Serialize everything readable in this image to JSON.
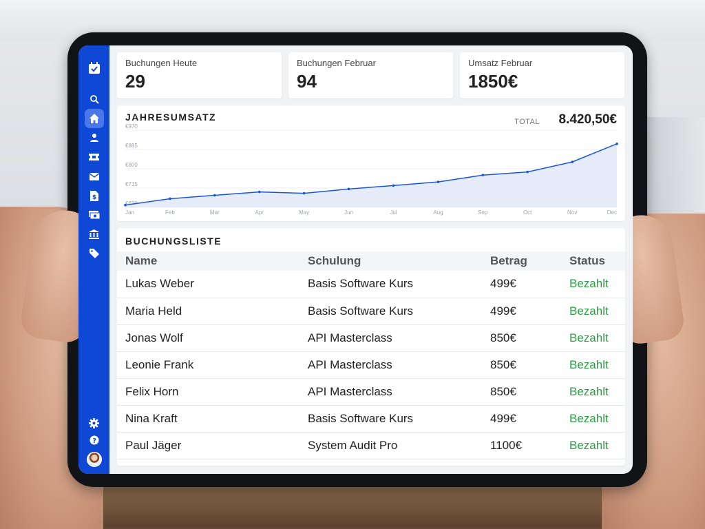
{
  "kpis": [
    {
      "label": "Buchungen Heute",
      "value": "29"
    },
    {
      "label": "Buchungen Februar",
      "value": "94"
    },
    {
      "label": "Umsatz Februar",
      "value": "1850€"
    }
  ],
  "revenue": {
    "title": "JAHRESUMSATZ",
    "total_label": "TOTAL",
    "total_value": "8.420,50€"
  },
  "chart_data": {
    "type": "area",
    "categories": [
      "Jan",
      "Feb",
      "Mar",
      "Apr",
      "May",
      "Jun",
      "Jul",
      "Aug",
      "Sep",
      "Oct",
      "Nov",
      "Dec"
    ],
    "values": [
      640,
      668,
      683,
      698,
      692,
      711,
      726,
      742,
      772,
      786,
      830,
      910
    ],
    "yticks": [
      630,
      715,
      800,
      885,
      970
    ],
    "ytick_labels": [
      "€630",
      "€715",
      "€800",
      "€885",
      "€970"
    ],
    "ylim": [
      630,
      970
    ],
    "grid": true,
    "color": "#1a56d6",
    "fill": "#e5ebf8"
  },
  "bookings": {
    "title": "BUCHUNGSLISTE",
    "columns": [
      "Name",
      "Schulung",
      "Betrag",
      "Status"
    ],
    "rows": [
      {
        "name": "Lukas Weber",
        "course": "Basis Software Kurs",
        "amount": "499€",
        "status": "Bezahlt"
      },
      {
        "name": "Maria Held",
        "course": "Basis Software Kurs",
        "amount": "499€",
        "status": "Bezahlt"
      },
      {
        "name": "Jonas Wolf",
        "course": "API Masterclass",
        "amount": "850€",
        "status": "Bezahlt"
      },
      {
        "name": "Leonie Frank",
        "course": "API Masterclass",
        "amount": "850€",
        "status": "Bezahlt"
      },
      {
        "name": "Felix Horn",
        "course": "API Masterclass",
        "amount": "850€",
        "status": "Bezahlt"
      },
      {
        "name": "Nina Kraft",
        "course": "Basis Software Kurs",
        "amount": "499€",
        "status": "Bezahlt"
      },
      {
        "name": "Paul Jäger",
        "course": "System Audit Pro",
        "amount": "1100€",
        "status": "Bezahlt"
      }
    ]
  },
  "sidebar": {
    "logo_icon": "calendar-check-icon",
    "items": [
      {
        "icon": "search-icon"
      },
      {
        "icon": "home-icon",
        "active": true
      },
      {
        "icon": "user-icon"
      },
      {
        "icon": "ticket-icon"
      },
      {
        "icon": "mail-icon"
      },
      {
        "icon": "invoice-icon"
      },
      {
        "icon": "money-icon"
      },
      {
        "icon": "bank-icon"
      },
      {
        "icon": "tag-icon"
      }
    ],
    "bottom": [
      {
        "icon": "settings-icon"
      },
      {
        "icon": "help-icon"
      },
      {
        "icon": "avatar"
      }
    ],
    "color": "#1048d6"
  }
}
